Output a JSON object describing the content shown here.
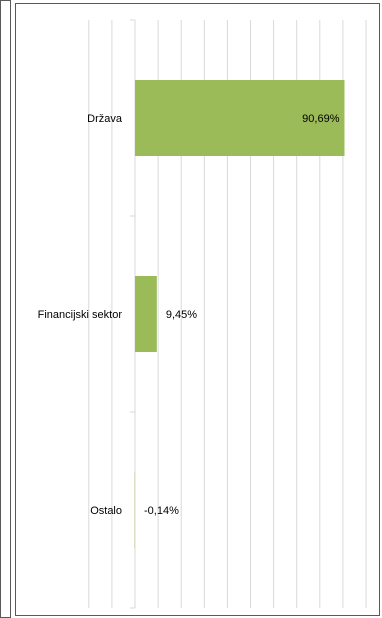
{
  "chart_data": {
    "type": "bar",
    "orientation": "horizontal",
    "categories": [
      "Država",
      "Financijski sektor",
      "Ostalo"
    ],
    "values": [
      90.69,
      9.45,
      -0.14
    ],
    "data_labels": [
      "90,69%",
      "9,45%",
      "-0,14%"
    ],
    "xlim": [
      -1,
      100
    ],
    "grid": true,
    "legend": "none",
    "bar_color": "#9bbb59",
    "grid_color": "#d9d9d9",
    "border_color": "#595959"
  }
}
